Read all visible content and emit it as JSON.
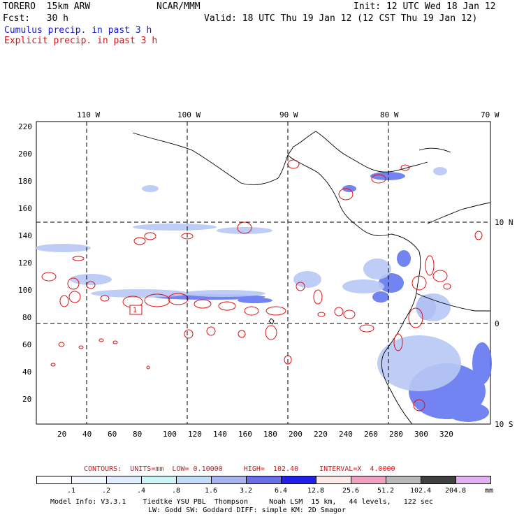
{
  "header": {
    "model": "TORERO  15km ARW",
    "center": "NCAR/MMM",
    "init": "Init: 12 UTC Wed 18 Jan 12",
    "fcst": "Fcst:   30 h",
    "valid": "Valid: 18 UTC Thu 19 Jan 12 (12 CST Thu 19 Jan 12)",
    "field1": "Cumulus precip. in past 3 h",
    "field2": "Explicit precip. in past 3 h",
    "field1_color": "#1a1acc",
    "field2_color": "#e01010"
  },
  "axes": {
    "lon_labels": [
      "110 W",
      "100 W",
      "90 W",
      "80 W",
      "70 W"
    ],
    "lat_labels": [
      "10 N",
      "0",
      "10 S"
    ],
    "y_ticks": [
      "220",
      "200",
      "180",
      "160",
      "140",
      "120",
      "100",
      "80",
      "60",
      "40",
      "20"
    ],
    "x_ticks": [
      "20",
      "40",
      "60",
      "80",
      "100",
      "120",
      "140",
      "160",
      "180",
      "200",
      "220",
      "240",
      "260",
      "280",
      "300",
      "320"
    ]
  },
  "contours": {
    "label": "CONTOURS:  UNITS=mm  LOW= 0.10000     HIGH=  102.40     INTERVAL=X  4.0000",
    "box_label": "1"
  },
  "colorbar": {
    "labels": [
      ".1",
      ".2",
      ".4",
      ".8",
      "1.6",
      "3.2",
      "6.4",
      "12.8",
      "25.6",
      "51.2",
      "102.4",
      "204.8"
    ],
    "unit": "mm",
    "colors": [
      "#ffffff",
      "#f4f8ff",
      "#e0ecff",
      "#ccf4f4",
      "#c0dcf8",
      "#a8b4f0",
      "#6870e8",
      "#2020e8",
      "#ffe8e8",
      "#f0a0c0",
      "#b8b8b8",
      "#404040",
      "#e0b0f0"
    ]
  },
  "footer": {
    "line1": "Model Info: V3.3.1    Tiedtke YSU PBL  Thompson     Noah LSM  15 km,   44 levels,   122 sec",
    "line2": "LW: Godd SW: Goddard DIFF: simple KM: 2D Smagor"
  }
}
